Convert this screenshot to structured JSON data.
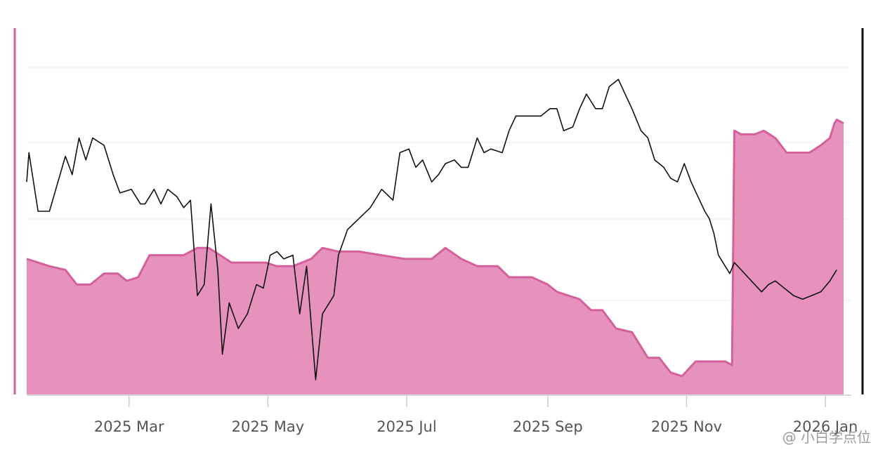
{
  "watermark": "@ 小白学点位",
  "colors": {
    "area_fill": "#e692bd",
    "area_stroke": "#d4609c",
    "line": "#111111",
    "grid": "#eeeeee",
    "axis": "#cccccc"
  },
  "chart_data": {
    "type": "area",
    "title": "",
    "xlabel": "",
    "ylabel": "",
    "x_tick_labels": [
      "2025 Mar",
      "2025 May",
      "2025 Jul",
      "2025 Sep",
      "2025 Nov",
      "2026 Jan"
    ],
    "x_tick_dates": [
      "2025-03-01",
      "2025-05-01",
      "2025-07-01",
      "2025-09-01",
      "2025-11-01",
      "2026-01-01"
    ],
    "x_range": [
      "2025-01-15",
      "2026-01-05"
    ],
    "y_range_relative": [
      0,
      100
    ],
    "grid": true,
    "series": [
      {
        "kind": "area",
        "points": [
          [
            "2025-01-15",
            37
          ],
          [
            "2025-01-20",
            36
          ],
          [
            "2025-01-25",
            35
          ],
          [
            "2025-02-01",
            34
          ],
          [
            "2025-02-06",
            30
          ],
          [
            "2025-02-12",
            30
          ],
          [
            "2025-02-18",
            33
          ],
          [
            "2025-02-24",
            33
          ],
          [
            "2025-02-28",
            31
          ],
          [
            "2025-03-05",
            32
          ],
          [
            "2025-03-10",
            38
          ],
          [
            "2025-03-18",
            38
          ],
          [
            "2025-03-25",
            38
          ],
          [
            "2025-03-31",
            40
          ],
          [
            "2025-04-05",
            40
          ],
          [
            "2025-04-10",
            38
          ],
          [
            "2025-04-15",
            36
          ],
          [
            "2025-04-25",
            36
          ],
          [
            "2025-04-30",
            36
          ],
          [
            "2025-05-05",
            35
          ],
          [
            "2025-05-12",
            35
          ],
          [
            "2025-05-20",
            37
          ],
          [
            "2025-05-25",
            40
          ],
          [
            "2025-06-01",
            39
          ],
          [
            "2025-06-10",
            39
          ],
          [
            "2025-06-20",
            38
          ],
          [
            "2025-06-30",
            37
          ],
          [
            "2025-07-05",
            37
          ],
          [
            "2025-07-12",
            37
          ],
          [
            "2025-07-18",
            40
          ],
          [
            "2025-07-25",
            37
          ],
          [
            "2025-08-01",
            35
          ],
          [
            "2025-08-10",
            35
          ],
          [
            "2025-08-15",
            32
          ],
          [
            "2025-08-25",
            32
          ],
          [
            "2025-09-01",
            30
          ],
          [
            "2025-09-05",
            28
          ],
          [
            "2025-09-15",
            26
          ],
          [
            "2025-09-20",
            23
          ],
          [
            "2025-09-25",
            23
          ],
          [
            "2025-10-01",
            18
          ],
          [
            "2025-10-08",
            17
          ],
          [
            "2025-10-15",
            10
          ],
          [
            "2025-10-20",
            10
          ],
          [
            "2025-10-25",
            6
          ],
          [
            "2025-10-30",
            5
          ],
          [
            "2025-11-05",
            9
          ],
          [
            "2025-11-12",
            9
          ],
          [
            "2025-11-18",
            9
          ],
          [
            "2025-11-21",
            8
          ],
          [
            "2025-11-22",
            72
          ],
          [
            "2025-11-25",
            71
          ],
          [
            "2025-12-01",
            71
          ],
          [
            "2025-12-05",
            72
          ],
          [
            "2025-12-10",
            70
          ],
          [
            "2025-12-15",
            66
          ],
          [
            "2025-12-20",
            66
          ],
          [
            "2025-12-25",
            66
          ],
          [
            "2025-12-30",
            68
          ],
          [
            "2026-01-03",
            70
          ],
          [
            "2026-01-05",
            74
          ],
          [
            "2026-01-06",
            75
          ],
          [
            "2026-01-09",
            74
          ]
        ]
      },
      {
        "kind": "line",
        "points": [
          [
            "2025-01-15",
            58
          ],
          [
            "2025-01-16",
            66
          ],
          [
            "2025-01-20",
            50
          ],
          [
            "2025-01-25",
            50
          ],
          [
            "2025-02-01",
            65
          ],
          [
            "2025-02-04",
            60
          ],
          [
            "2025-02-07",
            70
          ],
          [
            "2025-02-10",
            64
          ],
          [
            "2025-02-13",
            70
          ],
          [
            "2025-02-18",
            68
          ],
          [
            "2025-02-22",
            60
          ],
          [
            "2025-02-25",
            55
          ],
          [
            "2025-03-02",
            56
          ],
          [
            "2025-03-06",
            52
          ],
          [
            "2025-03-08",
            52
          ],
          [
            "2025-03-12",
            56
          ],
          [
            "2025-03-15",
            52
          ],
          [
            "2025-03-18",
            56
          ],
          [
            "2025-03-22",
            54
          ],
          [
            "2025-03-25",
            51
          ],
          [
            "2025-03-28",
            53
          ],
          [
            "2025-03-31",
            27
          ],
          [
            "2025-04-03",
            30
          ],
          [
            "2025-04-06",
            52
          ],
          [
            "2025-04-09",
            34
          ],
          [
            "2025-04-11",
            11
          ],
          [
            "2025-04-14",
            25
          ],
          [
            "2025-04-18",
            18
          ],
          [
            "2025-04-22",
            22
          ],
          [
            "2025-04-26",
            30
          ],
          [
            "2025-04-29",
            29
          ],
          [
            "2025-05-02",
            38
          ],
          [
            "2025-05-05",
            39
          ],
          [
            "2025-05-08",
            37
          ],
          [
            "2025-05-12",
            38
          ],
          [
            "2025-05-15",
            22
          ],
          [
            "2025-05-18",
            35
          ],
          [
            "2025-05-22",
            4
          ],
          [
            "2025-05-25",
            22
          ],
          [
            "2025-05-28",
            25
          ],
          [
            "2025-05-30",
            27
          ],
          [
            "2025-06-01",
            38
          ],
          [
            "2025-06-05",
            45
          ],
          [
            "2025-06-10",
            48
          ],
          [
            "2025-06-15",
            51
          ],
          [
            "2025-06-20",
            56
          ],
          [
            "2025-06-25",
            53
          ],
          [
            "2025-06-28",
            66
          ],
          [
            "2025-07-02",
            67
          ],
          [
            "2025-07-05",
            62
          ],
          [
            "2025-07-08",
            64
          ],
          [
            "2025-07-12",
            58
          ],
          [
            "2025-07-15",
            60
          ],
          [
            "2025-07-18",
            63
          ],
          [
            "2025-07-22",
            64
          ],
          [
            "2025-07-25",
            62
          ],
          [
            "2025-07-28",
            62
          ],
          [
            "2025-08-01",
            70
          ],
          [
            "2025-08-04",
            66
          ],
          [
            "2025-08-07",
            67
          ],
          [
            "2025-08-12",
            66
          ],
          [
            "2025-08-15",
            72
          ],
          [
            "2025-08-18",
            76
          ],
          [
            "2025-08-22",
            76
          ],
          [
            "2025-08-25",
            76
          ],
          [
            "2025-08-29",
            76
          ],
          [
            "2025-09-02",
            78
          ],
          [
            "2025-09-05",
            78
          ],
          [
            "2025-09-08",
            72
          ],
          [
            "2025-09-12",
            73
          ],
          [
            "2025-09-15",
            78
          ],
          [
            "2025-09-18",
            82
          ],
          [
            "2025-09-22",
            78
          ],
          [
            "2025-09-25",
            78
          ],
          [
            "2025-09-28",
            84
          ],
          [
            "2025-10-02",
            86
          ],
          [
            "2025-10-05",
            82
          ],
          [
            "2025-10-08",
            78
          ],
          [
            "2025-10-12",
            72
          ],
          [
            "2025-10-15",
            70
          ],
          [
            "2025-10-18",
            64
          ],
          [
            "2025-10-22",
            62
          ],
          [
            "2025-10-25",
            59
          ],
          [
            "2025-10-28",
            58
          ],
          [
            "2025-10-31",
            63
          ],
          [
            "2025-11-03",
            58
          ],
          [
            "2025-11-06",
            54
          ],
          [
            "2025-11-09",
            50
          ],
          [
            "2025-11-11",
            48
          ],
          [
            "2025-11-13",
            44
          ],
          [
            "2025-11-15",
            38
          ],
          [
            "2025-11-18",
            35
          ],
          [
            "2025-11-20",
            33
          ],
          [
            "2025-11-22",
            36
          ],
          [
            "2025-11-25",
            34
          ],
          [
            "2025-11-28",
            32
          ],
          [
            "2025-12-01",
            30
          ],
          [
            "2025-12-04",
            28
          ],
          [
            "2025-12-07",
            30
          ],
          [
            "2025-12-10",
            31
          ],
          [
            "2025-12-14",
            29
          ],
          [
            "2025-12-18",
            27
          ],
          [
            "2025-12-22",
            26
          ],
          [
            "2025-12-26",
            27
          ],
          [
            "2025-12-30",
            28
          ],
          [
            "2026-01-03",
            31
          ],
          [
            "2026-01-06",
            34
          ]
        ]
      }
    ]
  }
}
